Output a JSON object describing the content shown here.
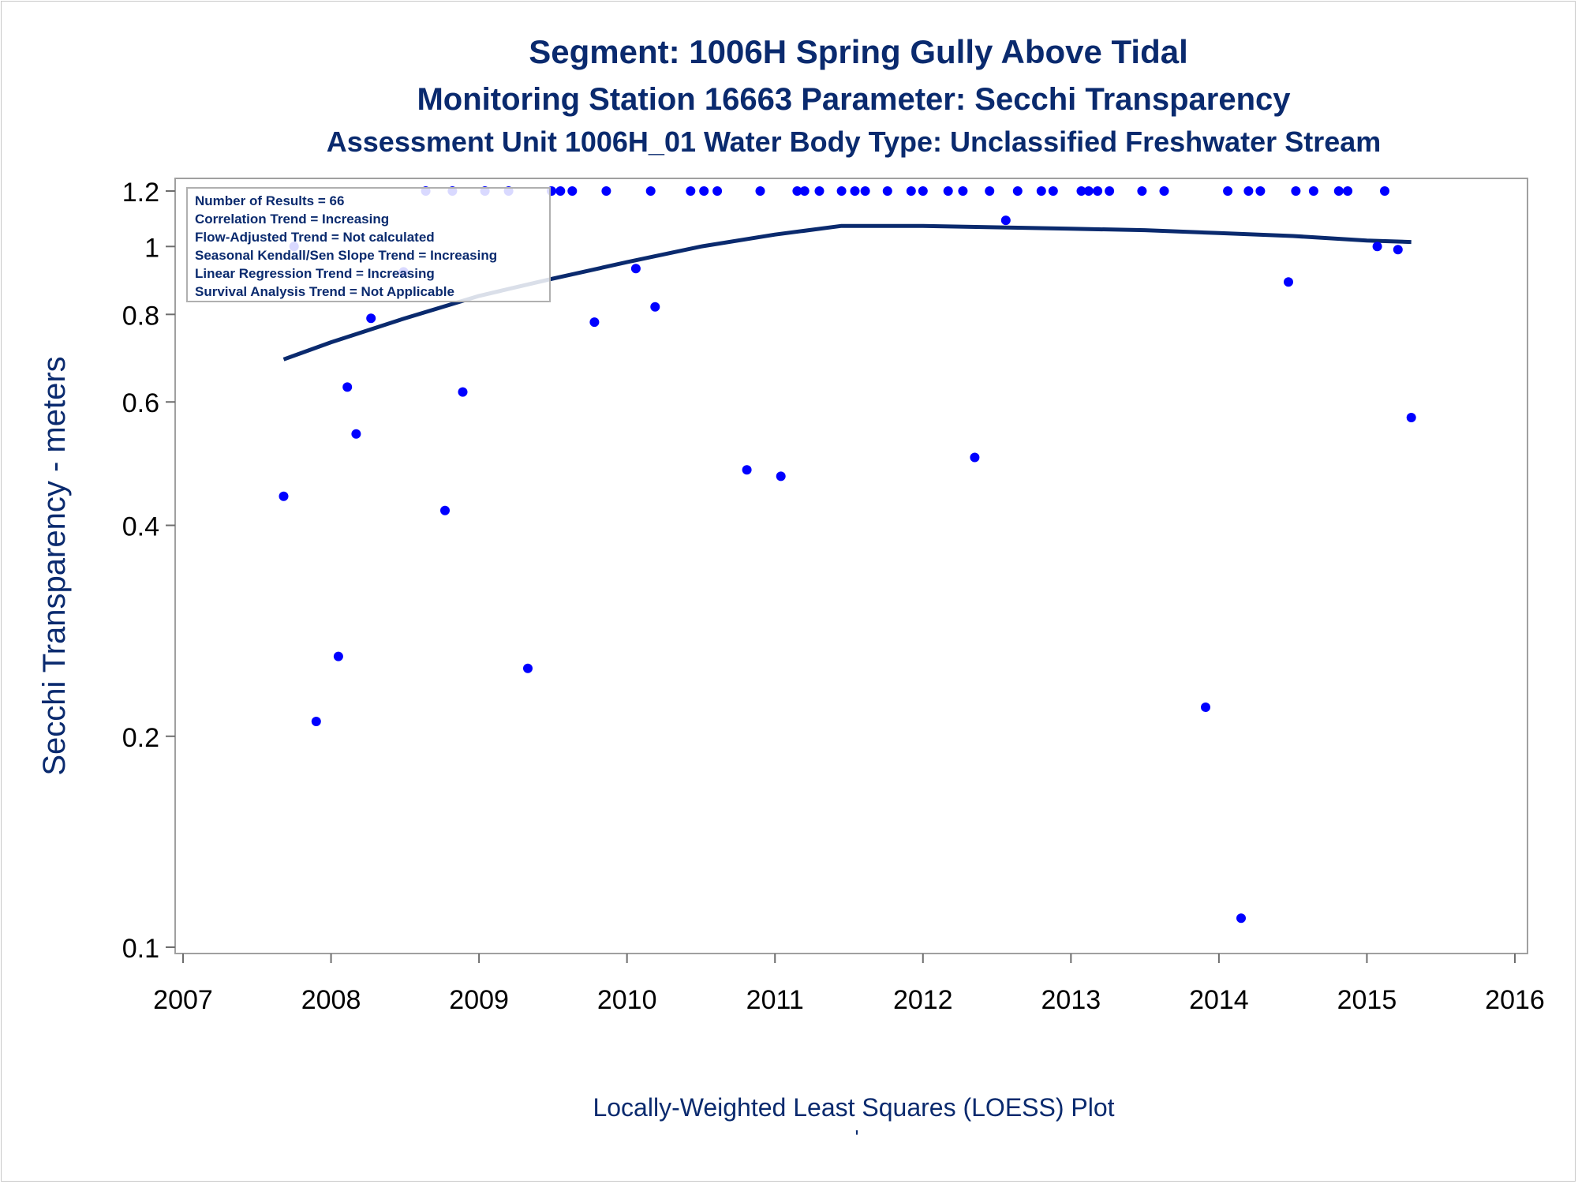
{
  "chart_data": {
    "type": "scatter",
    "title": "Segment: 1006H  Spring Gully Above Tidal",
    "subtitle": "Monitoring Station 16663 Parameter: Secchi Transparency",
    "subtitle2": "Assessment Unit 1006H_01   Water Body Type: Unclassified Freshwater Stream",
    "xlabel": "",
    "ylabel": "Secchi Transparency - meters",
    "footnote": "Locally-Weighted Least Squares (LOESS) Plot",
    "footnote2": "'",
    "y_scale": "log",
    "xlim": [
      2007,
      2016
    ],
    "ylim": [
      0.095,
      1.21
    ],
    "x_ticks": [
      "2007",
      "2008",
      "2009",
      "2010",
      "2011",
      "2012",
      "2013",
      "2014",
      "2015",
      "2016"
    ],
    "y_ticks": [
      "0.1",
      "0.2",
      "0.4",
      "0.6",
      "0.8",
      "1",
      "1.2"
    ],
    "y_tick_values": [
      0.1,
      0.2,
      0.4,
      0.6,
      0.8,
      1,
      1.2
    ],
    "x_tick_values": [
      2007,
      2008,
      2009,
      2010,
      2011,
      2012,
      2013,
      2014,
      2015,
      2016
    ],
    "legend_position": "top-left",
    "legend_lines": [
      "Number of Results = 66",
      "Correlation Trend = Increasing",
      "Flow-Adjusted Trend = Not calculated",
      "Seasonal Kendall/Sen Slope Trend = Increasing",
      "Linear Regression Trend = Increasing",
      "Survival Analysis Trend = Not Applicable"
    ],
    "colors": {
      "points": "#0000ff",
      "loess": "#0a2a6e",
      "text": "#0a2a6e",
      "frame": "#a0a0a0"
    },
    "series": [
      {
        "kind": "points",
        "x": [
          2007.68,
          2007.75,
          2007.9,
          2008.05,
          2008.11,
          2008.17,
          2008.27,
          2008.49,
          2008.64,
          2008.77,
          2008.82,
          2008.89,
          2009.04,
          2009.2,
          2009.33,
          2009.49,
          2009.55,
          2009.63,
          2009.78,
          2009.86,
          2010.06,
          2010.16,
          2010.19,
          2010.43,
          2010.52,
          2010.61,
          2010.81,
          2010.9,
          2011.04,
          2011.15,
          2011.2,
          2011.3,
          2011.45,
          2011.54,
          2011.61,
          2011.76,
          2011.92,
          2012.0,
          2012.17,
          2012.27,
          2012.35,
          2012.45,
          2012.56,
          2012.64,
          2012.8,
          2012.88,
          2013.07,
          2013.12,
          2013.18,
          2013.26,
          2013.48,
          2013.63,
          2013.91,
          2014.06,
          2014.15,
          2014.2,
          2014.28,
          2014.47,
          2014.52,
          2014.64,
          2014.81,
          2014.87,
          2015.07,
          2015.12,
          2015.21,
          2015.3
        ],
        "y": [
          0.44,
          1.0,
          0.21,
          0.26,
          0.63,
          0.54,
          0.79,
          0.92,
          1.2,
          0.42,
          1.2,
          0.62,
          1.2,
          1.2,
          0.25,
          1.2,
          1.2,
          1.2,
          0.78,
          1.2,
          0.93,
          1.2,
          0.82,
          1.2,
          1.2,
          1.2,
          0.48,
          1.2,
          0.47,
          1.2,
          1.2,
          1.2,
          1.2,
          1.2,
          1.2,
          1.2,
          1.2,
          1.2,
          1.2,
          1.2,
          0.5,
          1.2,
          1.09,
          1.2,
          1.2,
          1.2,
          1.2,
          1.2,
          1.2,
          1.2,
          1.2,
          1.2,
          0.22,
          1.2,
          0.11,
          1.2,
          1.2,
          0.89,
          1.2,
          1.2,
          1.2,
          1.2,
          1.0,
          1.2,
          0.99,
          0.57
        ]
      },
      {
        "kind": "loess",
        "x": [
          2007.68,
          2008.0,
          2008.5,
          2009.0,
          2009.5,
          2010.0,
          2010.5,
          2011.0,
          2011.45,
          2011.6,
          2012.0,
          2012.5,
          2013.0,
          2013.5,
          2014.0,
          2014.5,
          2015.0,
          2015.3
        ],
        "y": [
          0.69,
          0.73,
          0.79,
          0.85,
          0.9,
          0.95,
          1.0,
          1.04,
          1.07,
          1.07,
          1.07,
          1.065,
          1.06,
          1.055,
          1.045,
          1.035,
          1.02,
          1.015
        ]
      }
    ]
  }
}
